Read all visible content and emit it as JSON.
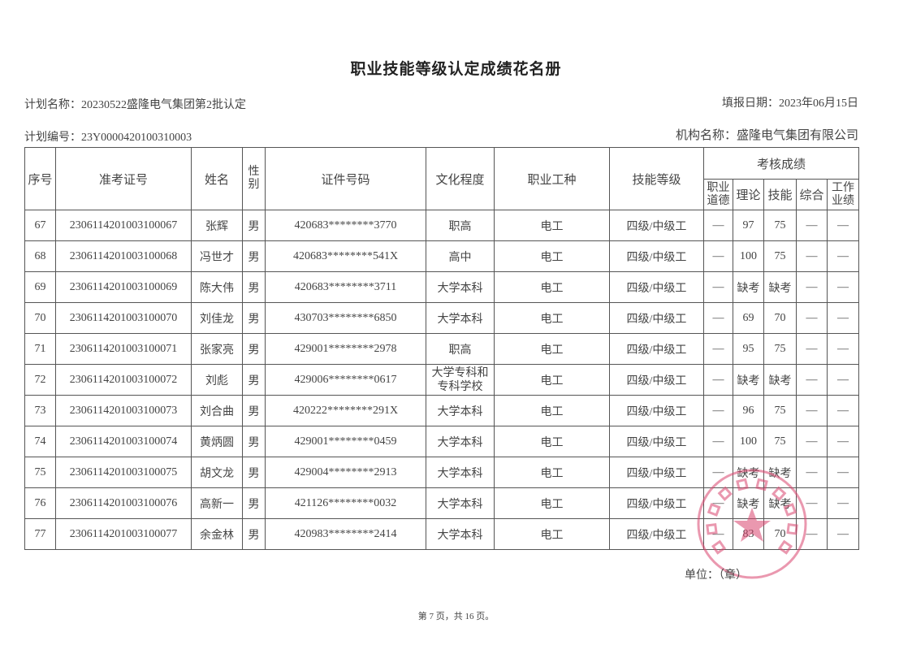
{
  "title": "职业技能等级认定成绩花名册",
  "plan_name": "计划名称：20230522盛隆电气集团第2批认定",
  "fill_date": "填报日期：2023年06月15日",
  "plan_no": "计划编号：23Y0000420100310003",
  "org_name": "机构名称：盛隆电气集团有限公司",
  "headers": {
    "seq": "序号",
    "exam_no": "准考证号",
    "name": "姓名",
    "gender": "性别",
    "id_no": "证件号码",
    "education": "文化程度",
    "occupation": "职业工种",
    "level": "技能等级",
    "scores": "考核成绩",
    "ethics": "职业道德",
    "theory": "理论",
    "skill": "技能",
    "overall": "综合",
    "work": "工作业绩"
  },
  "rows": [
    {
      "seq": "67",
      "exam_no": "2306114201003100067",
      "name": "张辉",
      "gender": "男",
      "id_no": "420683********3770",
      "education": "职高",
      "occupation": "电工",
      "level": "四级/中级工",
      "ethics": "—",
      "theory": "97",
      "skill": "75",
      "overall": "—",
      "work": "—"
    },
    {
      "seq": "68",
      "exam_no": "2306114201003100068",
      "name": "冯世才",
      "gender": "男",
      "id_no": "420683********541X",
      "education": "高中",
      "occupation": "电工",
      "level": "四级/中级工",
      "ethics": "—",
      "theory": "100",
      "skill": "75",
      "overall": "—",
      "work": "—"
    },
    {
      "seq": "69",
      "exam_no": "2306114201003100069",
      "name": "陈大伟",
      "gender": "男",
      "id_no": "420683********3711",
      "education": "大学本科",
      "occupation": "电工",
      "level": "四级/中级工",
      "ethics": "—",
      "theory": "缺考",
      "skill": "缺考",
      "overall": "—",
      "work": "—"
    },
    {
      "seq": "70",
      "exam_no": "2306114201003100070",
      "name": "刘佳龙",
      "gender": "男",
      "id_no": "430703********6850",
      "education": "大学本科",
      "occupation": "电工",
      "level": "四级/中级工",
      "ethics": "—",
      "theory": "69",
      "skill": "70",
      "overall": "—",
      "work": "—"
    },
    {
      "seq": "71",
      "exam_no": "2306114201003100071",
      "name": "张家亮",
      "gender": "男",
      "id_no": "429001********2978",
      "education": "职高",
      "occupation": "电工",
      "level": "四级/中级工",
      "ethics": "—",
      "theory": "95",
      "skill": "75",
      "overall": "—",
      "work": "—"
    },
    {
      "seq": "72",
      "exam_no": "2306114201003100072",
      "name": "刘彪",
      "gender": "男",
      "id_no": "429006********0617",
      "education": "大学专科和专科学校",
      "occupation": "电工",
      "level": "四级/中级工",
      "ethics": "—",
      "theory": "缺考",
      "skill": "缺考",
      "overall": "—",
      "work": "—"
    },
    {
      "seq": "73",
      "exam_no": "2306114201003100073",
      "name": "刘合曲",
      "gender": "男",
      "id_no": "420222********291X",
      "education": "大学本科",
      "occupation": "电工",
      "level": "四级/中级工",
      "ethics": "—",
      "theory": "96",
      "skill": "75",
      "overall": "—",
      "work": "—"
    },
    {
      "seq": "74",
      "exam_no": "2306114201003100074",
      "name": "黄炳圆",
      "gender": "男",
      "id_no": "429001********0459",
      "education": "大学本科",
      "occupation": "电工",
      "level": "四级/中级工",
      "ethics": "—",
      "theory": "100",
      "skill": "75",
      "overall": "—",
      "work": "—"
    },
    {
      "seq": "75",
      "exam_no": "2306114201003100075",
      "name": "胡文龙",
      "gender": "男",
      "id_no": "429004********2913",
      "education": "大学本科",
      "occupation": "电工",
      "level": "四级/中级工",
      "ethics": "—",
      "theory": "缺考",
      "skill": "缺考",
      "overall": "—",
      "work": "—"
    },
    {
      "seq": "76",
      "exam_no": "2306114201003100076",
      "name": "高新一",
      "gender": "男",
      "id_no": "421126********0032",
      "education": "大学本科",
      "occupation": "电工",
      "level": "四级/中级工",
      "ethics": "—",
      "theory": "缺考",
      "skill": "缺考",
      "overall": "—",
      "work": "—"
    },
    {
      "seq": "77",
      "exam_no": "2306114201003100077",
      "name": "余金林",
      "gender": "男",
      "id_no": "420983********2414",
      "education": "大学本科",
      "occupation": "电工",
      "level": "四级/中级工",
      "ethics": "—",
      "theory": "83",
      "skill": "70",
      "overall": "—",
      "work": "—"
    }
  ],
  "unit_label": "单位：（章）",
  "stamp_text": "盛隆电气集团有限公司",
  "stamp_color": "#d9456e",
  "page_info": "第 7 页，共 16 页。"
}
